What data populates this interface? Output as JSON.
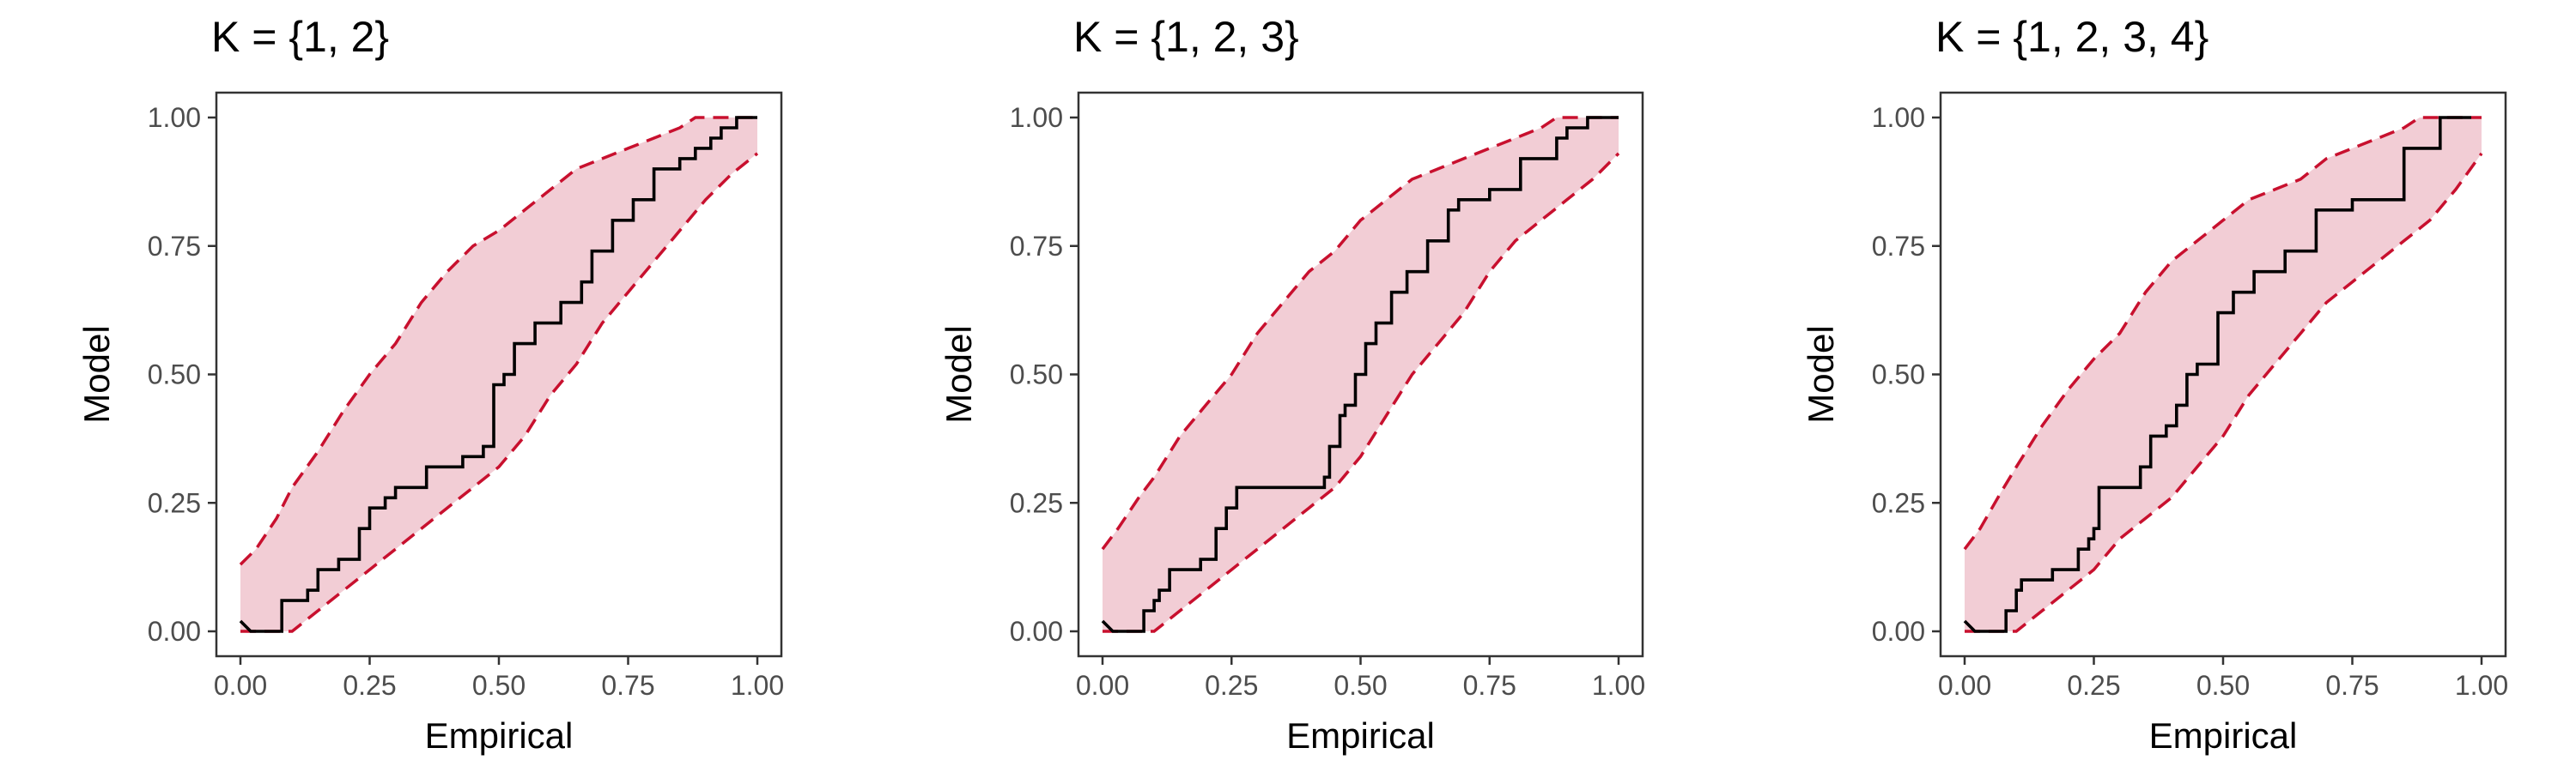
{
  "colors": {
    "band_fill": "#f2cdd5",
    "bound_line": "#c8102e",
    "ecdf_line": "#000000"
  },
  "chart_data": [
    {
      "type": "line",
      "title": "K = {1, 2}",
      "xlabel": "Empirical",
      "ylabel": "Model",
      "xlim": [
        0,
        1
      ],
      "ylim": [
        0,
        1
      ],
      "x_ticks": [
        "0.00",
        "0.25",
        "0.50",
        "0.75",
        "1.00"
      ],
      "y_ticks": [
        "0.00",
        "0.25",
        "0.50",
        "0.75",
        "1.00"
      ],
      "grid": false,
      "ecdf": [
        [
          0,
          0.02
        ],
        [
          0.02,
          0
        ],
        [
          0.08,
          0
        ],
        [
          0.08,
          0.06
        ],
        [
          0.13,
          0.06
        ],
        [
          0.13,
          0.08
        ],
        [
          0.15,
          0.08
        ],
        [
          0.15,
          0.12
        ],
        [
          0.19,
          0.12
        ],
        [
          0.19,
          0.14
        ],
        [
          0.23,
          0.14
        ],
        [
          0.23,
          0.2
        ],
        [
          0.25,
          0.2
        ],
        [
          0.25,
          0.24
        ],
        [
          0.28,
          0.24
        ],
        [
          0.28,
          0.26
        ],
        [
          0.3,
          0.26
        ],
        [
          0.3,
          0.28
        ],
        [
          0.36,
          0.28
        ],
        [
          0.36,
          0.32
        ],
        [
          0.43,
          0.32
        ],
        [
          0.43,
          0.34
        ],
        [
          0.47,
          0.34
        ],
        [
          0.47,
          0.36
        ],
        [
          0.49,
          0.36
        ],
        [
          0.49,
          0.48
        ],
        [
          0.51,
          0.48
        ],
        [
          0.51,
          0.5
        ],
        [
          0.53,
          0.5
        ],
        [
          0.53,
          0.56
        ],
        [
          0.57,
          0.56
        ],
        [
          0.57,
          0.6
        ],
        [
          0.62,
          0.6
        ],
        [
          0.62,
          0.64
        ],
        [
          0.66,
          0.64
        ],
        [
          0.66,
          0.68
        ],
        [
          0.68,
          0.68
        ],
        [
          0.68,
          0.74
        ],
        [
          0.72,
          0.74
        ],
        [
          0.72,
          0.8
        ],
        [
          0.76,
          0.8
        ],
        [
          0.76,
          0.84
        ],
        [
          0.8,
          0.84
        ],
        [
          0.8,
          0.9
        ],
        [
          0.85,
          0.9
        ],
        [
          0.85,
          0.92
        ],
        [
          0.88,
          0.92
        ],
        [
          0.88,
          0.94
        ],
        [
          0.91,
          0.94
        ],
        [
          0.91,
          0.96
        ],
        [
          0.93,
          0.96
        ],
        [
          0.93,
          0.98
        ],
        [
          0.96,
          0.98
        ],
        [
          0.96,
          1
        ],
        [
          1,
          1
        ]
      ],
      "upper": [
        [
          0,
          0.13
        ],
        [
          0.03,
          0.16
        ],
        [
          0.07,
          0.22
        ],
        [
          0.1,
          0.28
        ],
        [
          0.15,
          0.35
        ],
        [
          0.2,
          0.43
        ],
        [
          0.25,
          0.5
        ],
        [
          0.3,
          0.56
        ],
        [
          0.35,
          0.64
        ],
        [
          0.4,
          0.7
        ],
        [
          0.45,
          0.75
        ],
        [
          0.5,
          0.78
        ],
        [
          0.55,
          0.82
        ],
        [
          0.6,
          0.86
        ],
        [
          0.65,
          0.9
        ],
        [
          0.7,
          0.92
        ],
        [
          0.75,
          0.94
        ],
        [
          0.8,
          0.96
        ],
        [
          0.85,
          0.98
        ],
        [
          0.88,
          1
        ],
        [
          1,
          1
        ]
      ],
      "lower": [
        [
          0,
          0
        ],
        [
          0.1,
          0
        ],
        [
          0.15,
          0.04
        ],
        [
          0.2,
          0.08
        ],
        [
          0.25,
          0.12
        ],
        [
          0.3,
          0.16
        ],
        [
          0.35,
          0.2
        ],
        [
          0.4,
          0.24
        ],
        [
          0.45,
          0.28
        ],
        [
          0.5,
          0.32
        ],
        [
          0.55,
          0.38
        ],
        [
          0.6,
          0.46
        ],
        [
          0.65,
          0.52
        ],
        [
          0.7,
          0.6
        ],
        [
          0.75,
          0.66
        ],
        [
          0.8,
          0.72
        ],
        [
          0.85,
          0.78
        ],
        [
          0.9,
          0.84
        ],
        [
          0.95,
          0.89
        ],
        [
          1,
          0.93
        ]
      ]
    },
    {
      "type": "line",
      "title": "K = {1, 2, 3}",
      "xlabel": "Empirical",
      "ylabel": "Model",
      "xlim": [
        0,
        1
      ],
      "ylim": [
        0,
        1
      ],
      "x_ticks": [
        "0.00",
        "0.25",
        "0.50",
        "0.75",
        "1.00"
      ],
      "y_ticks": [
        "0.00",
        "0.25",
        "0.50",
        "0.75",
        "1.00"
      ],
      "grid": false,
      "ecdf": [
        [
          0,
          0.02
        ],
        [
          0.02,
          0
        ],
        [
          0.08,
          0
        ],
        [
          0.08,
          0.04
        ],
        [
          0.1,
          0.04
        ],
        [
          0.1,
          0.06
        ],
        [
          0.11,
          0.06
        ],
        [
          0.11,
          0.08
        ],
        [
          0.13,
          0.08
        ],
        [
          0.13,
          0.12
        ],
        [
          0.19,
          0.12
        ],
        [
          0.19,
          0.14
        ],
        [
          0.22,
          0.14
        ],
        [
          0.22,
          0.2
        ],
        [
          0.24,
          0.2
        ],
        [
          0.24,
          0.24
        ],
        [
          0.26,
          0.24
        ],
        [
          0.26,
          0.28
        ],
        [
          0.43,
          0.28
        ],
        [
          0.43,
          0.3
        ],
        [
          0.44,
          0.3
        ],
        [
          0.44,
          0.36
        ],
        [
          0.46,
          0.36
        ],
        [
          0.46,
          0.42
        ],
        [
          0.47,
          0.42
        ],
        [
          0.47,
          0.44
        ],
        [
          0.49,
          0.44
        ],
        [
          0.49,
          0.5
        ],
        [
          0.51,
          0.5
        ],
        [
          0.51,
          0.56
        ],
        [
          0.53,
          0.56
        ],
        [
          0.53,
          0.6
        ],
        [
          0.56,
          0.6
        ],
        [
          0.56,
          0.66
        ],
        [
          0.59,
          0.66
        ],
        [
          0.59,
          0.7
        ],
        [
          0.63,
          0.7
        ],
        [
          0.63,
          0.76
        ],
        [
          0.67,
          0.76
        ],
        [
          0.67,
          0.82
        ],
        [
          0.69,
          0.82
        ],
        [
          0.69,
          0.84
        ],
        [
          0.75,
          0.84
        ],
        [
          0.75,
          0.86
        ],
        [
          0.81,
          0.86
        ],
        [
          0.81,
          0.92
        ],
        [
          0.88,
          0.92
        ],
        [
          0.88,
          0.96
        ],
        [
          0.9,
          0.96
        ],
        [
          0.9,
          0.98
        ],
        [
          0.94,
          0.98
        ],
        [
          0.94,
          1
        ],
        [
          1,
          1
        ]
      ],
      "upper": [
        [
          0,
          0.16
        ],
        [
          0.03,
          0.2
        ],
        [
          0.07,
          0.26
        ],
        [
          0.1,
          0.3
        ],
        [
          0.15,
          0.38
        ],
        [
          0.2,
          0.44
        ],
        [
          0.25,
          0.5
        ],
        [
          0.3,
          0.58
        ],
        [
          0.35,
          0.64
        ],
        [
          0.4,
          0.7
        ],
        [
          0.45,
          0.74
        ],
        [
          0.5,
          0.8
        ],
        [
          0.55,
          0.84
        ],
        [
          0.6,
          0.88
        ],
        [
          0.65,
          0.9
        ],
        [
          0.7,
          0.92
        ],
        [
          0.75,
          0.94
        ],
        [
          0.8,
          0.96
        ],
        [
          0.85,
          0.98
        ],
        [
          0.88,
          1
        ],
        [
          1,
          1
        ]
      ],
      "lower": [
        [
          0,
          0
        ],
        [
          0.1,
          0
        ],
        [
          0.15,
          0.04
        ],
        [
          0.2,
          0.08
        ],
        [
          0.25,
          0.12
        ],
        [
          0.3,
          0.16
        ],
        [
          0.35,
          0.2
        ],
        [
          0.4,
          0.24
        ],
        [
          0.45,
          0.28
        ],
        [
          0.5,
          0.34
        ],
        [
          0.55,
          0.42
        ],
        [
          0.6,
          0.5
        ],
        [
          0.65,
          0.56
        ],
        [
          0.7,
          0.62
        ],
        [
          0.75,
          0.7
        ],
        [
          0.8,
          0.76
        ],
        [
          0.85,
          0.8
        ],
        [
          0.9,
          0.84
        ],
        [
          0.95,
          0.88
        ],
        [
          1,
          0.93
        ]
      ]
    },
    {
      "type": "line",
      "title": "K = {1, 2, 3, 4}",
      "xlabel": "Empirical",
      "ylabel": "Model",
      "xlim": [
        0,
        1
      ],
      "ylim": [
        0,
        1
      ],
      "x_ticks": [
        "0.00",
        "0.25",
        "0.50",
        "0.75",
        "1.00"
      ],
      "y_ticks": [
        "0.00",
        "0.25",
        "0.50",
        "0.75",
        "1.00"
      ],
      "grid": false,
      "ecdf": [
        [
          0,
          0.02
        ],
        [
          0.02,
          0
        ],
        [
          0.08,
          0
        ],
        [
          0.08,
          0.04
        ],
        [
          0.1,
          0.04
        ],
        [
          0.1,
          0.08
        ],
        [
          0.11,
          0.08
        ],
        [
          0.11,
          0.1
        ],
        [
          0.17,
          0.1
        ],
        [
          0.17,
          0.12
        ],
        [
          0.22,
          0.12
        ],
        [
          0.22,
          0.16
        ],
        [
          0.24,
          0.16
        ],
        [
          0.24,
          0.18
        ],
        [
          0.25,
          0.18
        ],
        [
          0.25,
          0.2
        ],
        [
          0.26,
          0.2
        ],
        [
          0.26,
          0.28
        ],
        [
          0.34,
          0.28
        ],
        [
          0.34,
          0.32
        ],
        [
          0.36,
          0.32
        ],
        [
          0.36,
          0.38
        ],
        [
          0.39,
          0.38
        ],
        [
          0.39,
          0.4
        ],
        [
          0.41,
          0.4
        ],
        [
          0.41,
          0.44
        ],
        [
          0.43,
          0.44
        ],
        [
          0.43,
          0.5
        ],
        [
          0.45,
          0.5
        ],
        [
          0.45,
          0.52
        ],
        [
          0.49,
          0.52
        ],
        [
          0.49,
          0.62
        ],
        [
          0.52,
          0.62
        ],
        [
          0.52,
          0.66
        ],
        [
          0.56,
          0.66
        ],
        [
          0.56,
          0.7
        ],
        [
          0.62,
          0.7
        ],
        [
          0.62,
          0.74
        ],
        [
          0.68,
          0.74
        ],
        [
          0.68,
          0.82
        ],
        [
          0.75,
          0.82
        ],
        [
          0.75,
          0.84
        ],
        [
          0.85,
          0.84
        ],
        [
          0.85,
          0.94
        ],
        [
          0.92,
          0.94
        ],
        [
          0.92,
          1
        ],
        [
          0.98,
          1
        ]
      ],
      "upper": [
        [
          0,
          0.16
        ],
        [
          0.03,
          0.2
        ],
        [
          0.07,
          0.27
        ],
        [
          0.1,
          0.32
        ],
        [
          0.15,
          0.4
        ],
        [
          0.2,
          0.47
        ],
        [
          0.25,
          0.53
        ],
        [
          0.3,
          0.58
        ],
        [
          0.35,
          0.66
        ],
        [
          0.4,
          0.72
        ],
        [
          0.45,
          0.76
        ],
        [
          0.5,
          0.8
        ],
        [
          0.55,
          0.84
        ],
        [
          0.6,
          0.86
        ],
        [
          0.65,
          0.88
        ],
        [
          0.7,
          0.92
        ],
        [
          0.75,
          0.94
        ],
        [
          0.8,
          0.96
        ],
        [
          0.85,
          0.98
        ],
        [
          0.88,
          1
        ],
        [
          1,
          1
        ]
      ],
      "lower": [
        [
          0,
          0
        ],
        [
          0.1,
          0
        ],
        [
          0.15,
          0.04
        ],
        [
          0.2,
          0.08
        ],
        [
          0.25,
          0.12
        ],
        [
          0.3,
          0.18
        ],
        [
          0.35,
          0.22
        ],
        [
          0.4,
          0.26
        ],
        [
          0.45,
          0.32
        ],
        [
          0.5,
          0.38
        ],
        [
          0.55,
          0.46
        ],
        [
          0.6,
          0.52
        ],
        [
          0.65,
          0.58
        ],
        [
          0.7,
          0.64
        ],
        [
          0.75,
          0.68
        ],
        [
          0.8,
          0.72
        ],
        [
          0.85,
          0.76
        ],
        [
          0.9,
          0.8
        ],
        [
          0.95,
          0.86
        ],
        [
          1,
          0.93
        ]
      ]
    }
  ]
}
